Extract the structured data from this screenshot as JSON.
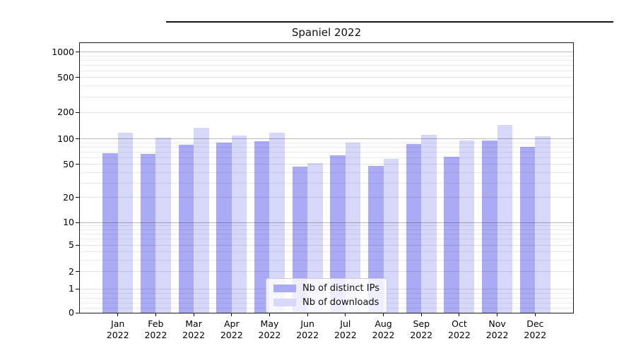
{
  "page": {
    "top_rule": "horizontal divider line"
  },
  "chart_data": {
    "type": "bar",
    "title": "Spaniel 2022",
    "categories": [
      "Jan 2022",
      "Feb 2022",
      "Mar 2022",
      "Apr 2022",
      "May 2022",
      "Jun 2022",
      "Jul 2022",
      "Aug 2022",
      "Sep 2022",
      "Oct 2022",
      "Nov 2022",
      "Dec 2022"
    ],
    "series": [
      {
        "name": "Nb of distinct IPs",
        "color": "#aaaaf5",
        "values": [
          68,
          67,
          85,
          91,
          94,
          47,
          64,
          48,
          87,
          62,
          97,
          81
        ]
      },
      {
        "name": "Nb of downloads",
        "color": "#d7d7fa",
        "values": [
          117,
          103,
          135,
          110,
          119,
          52,
          91,
          58,
          112,
          96,
          145,
          107
        ]
      }
    ],
    "xlabel": "",
    "ylabel": "",
    "yscale": "symlog",
    "yticks": [
      0,
      1,
      2,
      5,
      10,
      20,
      50,
      100,
      200,
      500,
      1000
    ],
    "ylim": [
      0,
      1280
    ],
    "grid": "on",
    "major_grid_values": [
      10,
      100,
      1000
    ],
    "legend_position": "lower center",
    "background_color": "#ffffff"
  }
}
